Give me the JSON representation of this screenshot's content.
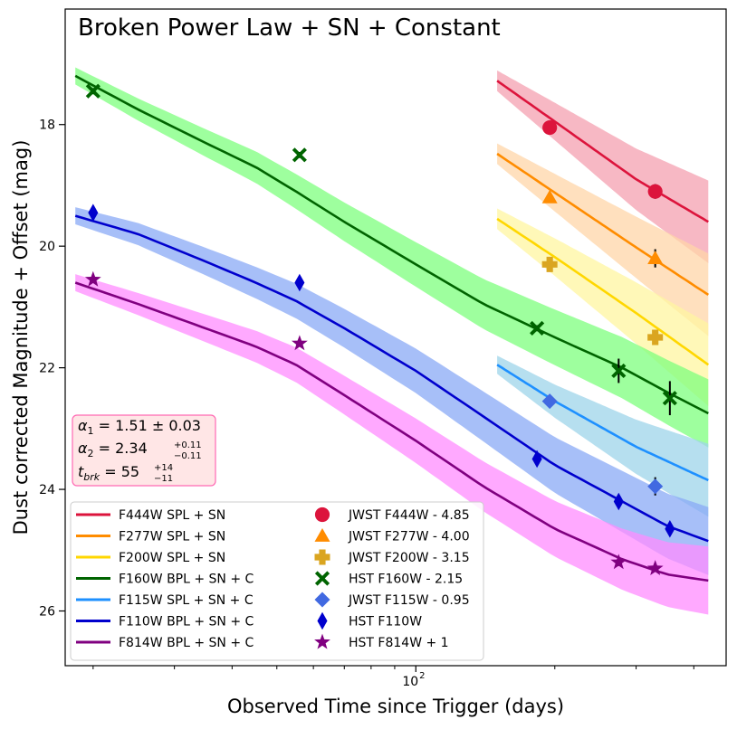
{
  "chart_data": {
    "type": "line",
    "title": "Broken Power Law + SN + Constant",
    "xlabel": "Observed Time since Trigger (days)",
    "ylabel": "Dust corrected Magnitude + Offset (mag)",
    "xscale": "log",
    "xlim": [
      17.4,
      470
    ],
    "ylim": [
      26.9,
      16.1
    ],
    "yticks": [
      {
        "value": 18,
        "label": "18"
      },
      {
        "value": 20,
        "label": "20"
      },
      {
        "value": 22,
        "label": "22"
      },
      {
        "value": 24,
        "label": "24"
      },
      {
        "value": 26,
        "label": "26"
      }
    ],
    "xticks_major": [
      {
        "value": 100,
        "base": "10",
        "exp": "2"
      }
    ],
    "xticks_minor": [
      20,
      30,
      40,
      50,
      60,
      70,
      80,
      90,
      200,
      300,
      400
    ],
    "fit_box": {
      "lines": [
        {
          "sym": "α",
          "sub": "1",
          "text": " = 1.51 ± 0.03"
        },
        {
          "sym": "α",
          "sub": "2",
          "text": " = 2.34",
          "sup2": "+0.11",
          "sub2": "−0.11"
        },
        {
          "sym": "t",
          "sub": "brk",
          "text": " = 55",
          "sup2": "+14",
          "sub2": "−11"
        }
      ]
    },
    "series": [
      {
        "name": "F444W SPL + SN",
        "color": "#dc143c",
        "band_color": "#f4a0b0",
        "model": [
          [
            150,
            17.28
          ],
          [
            200,
            17.95
          ],
          [
            300,
            18.9
          ],
          [
            430,
            19.6
          ]
        ],
        "band_width": 0.34
      },
      {
        "name": "F277W SPL + SN",
        "color": "#ff8c00",
        "band_color": "#ffd6a8",
        "model": [
          [
            150,
            18.48
          ],
          [
            200,
            19.12
          ],
          [
            300,
            20.02
          ],
          [
            430,
            20.8
          ]
        ],
        "band_width": 0.34
      },
      {
        "name": "F200W SPL + SN",
        "color": "#ffd700",
        "band_color": "#fff5a0",
        "model": [
          [
            150,
            19.55
          ],
          [
            200,
            20.18
          ],
          [
            300,
            21.1
          ],
          [
            430,
            21.95
          ]
        ],
        "band_width": 0.34
      },
      {
        "name": "F160W BPL + SN + C",
        "color": "#006400",
        "band_color": "#7dff7d",
        "model": [
          [
            18.3,
            17.2
          ],
          [
            25,
            17.75
          ],
          [
            35,
            18.3
          ],
          [
            45,
            18.7
          ],
          [
            55,
            19.1
          ],
          [
            70,
            19.6
          ],
          [
            100,
            20.3
          ],
          [
            140,
            20.95
          ],
          [
            200,
            21.5
          ],
          [
            280,
            22.0
          ],
          [
            350,
            22.4
          ],
          [
            430,
            22.75
          ]
        ],
        "band_width": 0.28
      },
      {
        "name": "F115W SPL + SN + C",
        "color": "#1e90ff",
        "band_color": "#9ed4ea",
        "model": [
          [
            150,
            21.95
          ],
          [
            200,
            22.55
          ],
          [
            300,
            23.3
          ],
          [
            430,
            23.85
          ]
        ],
        "band_width": 0.3
      },
      {
        "name": "F110W BPL + SN + C",
        "color": "#0000cd",
        "band_color": "#8aaaf5",
        "model": [
          [
            18.3,
            19.5
          ],
          [
            25,
            19.8
          ],
          [
            35,
            20.25
          ],
          [
            45,
            20.6
          ],
          [
            55,
            20.9
          ],
          [
            70,
            21.35
          ],
          [
            100,
            22.05
          ],
          [
            140,
            22.8
          ],
          [
            200,
            23.6
          ],
          [
            280,
            24.2
          ],
          [
            350,
            24.6
          ],
          [
            430,
            24.85
          ]
        ],
        "band_width": 0.28
      },
      {
        "name": "F814W BPL + SN + C",
        "color": "#800080",
        "band_color": "#ff8cff",
        "model": [
          [
            18.3,
            20.6
          ],
          [
            25,
            20.95
          ],
          [
            35,
            21.35
          ],
          [
            45,
            21.65
          ],
          [
            55,
            21.95
          ],
          [
            70,
            22.45
          ],
          [
            100,
            23.2
          ],
          [
            140,
            23.95
          ],
          [
            200,
            24.65
          ],
          [
            280,
            25.15
          ],
          [
            350,
            25.4
          ],
          [
            430,
            25.5
          ]
        ],
        "band_width": 0.28
      }
    ],
    "points": [
      {
        "name": "JWST F444W - 4.85",
        "marker": "circle",
        "color": "#dc143c",
        "data": [
          {
            "x": 195,
            "y": 18.05,
            "err": 0.05
          },
          {
            "x": 330,
            "y": 19.1,
            "err": 0.12
          }
        ]
      },
      {
        "name": "JWST F277W - 4.00",
        "marker": "triangle",
        "color": "#ff8c00",
        "data": [
          {
            "x": 195,
            "y": 19.2,
            "err": 0.05
          },
          {
            "x": 330,
            "y": 20.2,
            "err": 0.15
          }
        ]
      },
      {
        "name": "JWST F200W - 3.15",
        "marker": "plus",
        "color": "#daa520",
        "data": [
          {
            "x": 195,
            "y": 20.3,
            "err": 0.05
          },
          {
            "x": 330,
            "y": 21.5,
            "err": 0.12
          }
        ]
      },
      {
        "name": "HST F160W - 2.15",
        "marker": "x",
        "color": "#006400",
        "data": [
          {
            "x": 20,
            "y": 17.45,
            "err": 0.05
          },
          {
            "x": 56,
            "y": 18.5,
            "err": 0.05
          },
          {
            "x": 183,
            "y": 21.35,
            "err": 0.05
          },
          {
            "x": 275,
            "y": 22.05,
            "err": 0.2
          },
          {
            "x": 355,
            "y": 22.5,
            "err": 0.28
          }
        ]
      },
      {
        "name": "JWST F115W - 0.95",
        "marker": "diamond",
        "color": "#4169e1",
        "data": [
          {
            "x": 195,
            "y": 22.55,
            "err": 0.05
          },
          {
            "x": 330,
            "y": 23.95,
            "err": 0.15
          }
        ]
      },
      {
        "name": "HST F110W",
        "marker": "thin_diamond",
        "color": "#0000cd",
        "data": [
          {
            "x": 20,
            "y": 19.45,
            "err": 0.05
          },
          {
            "x": 56,
            "y": 20.6,
            "err": 0.05
          },
          {
            "x": 183,
            "y": 23.5,
            "err": 0.05
          },
          {
            "x": 275,
            "y": 24.2,
            "err": 0.08
          },
          {
            "x": 355,
            "y": 24.65,
            "err": 0.1
          }
        ]
      },
      {
        "name": "HST F814W + 1",
        "marker": "star",
        "color": "#800080",
        "data": [
          {
            "x": 20,
            "y": 20.55,
            "err": 0.05
          },
          {
            "x": 56,
            "y": 21.6,
            "err": 0.05
          },
          {
            "x": 275,
            "y": 25.2,
            "err": 0.06
          },
          {
            "x": 330,
            "y": 25.3,
            "err": 0.06
          }
        ]
      }
    ]
  }
}
